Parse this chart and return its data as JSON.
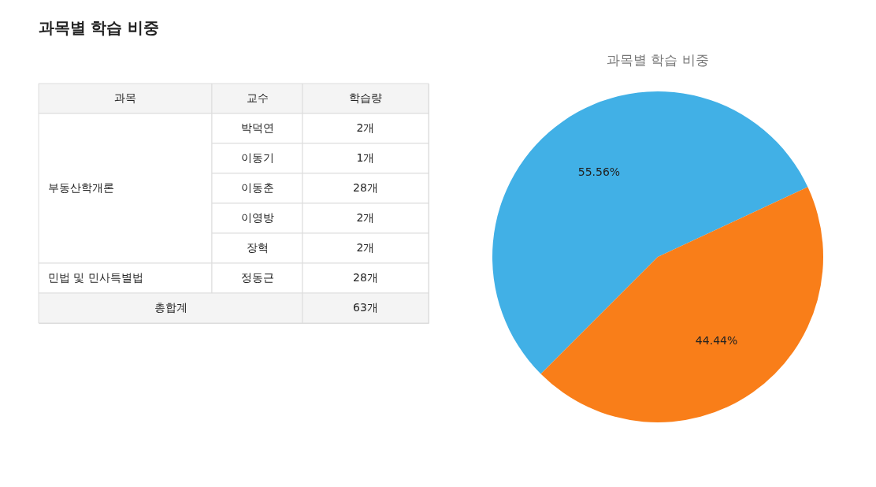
{
  "chart_data": [
    {
      "type": "other",
      "title": "과목별 학습 비중",
      "categories": [
        "과목",
        "교수",
        "학습량"
      ],
      "cell_labels": [
        [
          "부동산학개론",
          "박덕연",
          "2개"
        ],
        [
          null,
          "이동기",
          "1개"
        ],
        [
          null,
          "이동춘",
          "28개"
        ],
        [
          null,
          "이영방",
          "2개"
        ],
        [
          null,
          "장혁",
          "2개"
        ],
        [
          "민법 및 민사특별법",
          "정동근",
          "28개"
        ],
        [
          "총합계",
          null,
          "63개"
        ]
      ]
    },
    {
      "type": "pie",
      "title": "과목별 학습 비중",
      "categories": [
        null,
        null
      ],
      "values": [
        55.56,
        44.44
      ],
      "colors": [
        "#41b0e6",
        "#f97e19"
      ],
      "value_labels": [
        "55.56%",
        "44.44%"
      ]
    }
  ]
}
